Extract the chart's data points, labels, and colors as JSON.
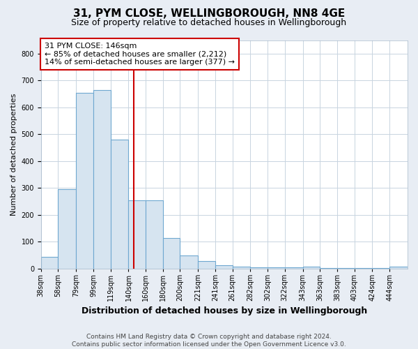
{
  "title": "31, PYM CLOSE, WELLINGBOROUGH, NN8 4GE",
  "subtitle": "Size of property relative to detached houses in Wellingborough",
  "xlabel": "Distribution of detached houses by size in Wellingborough",
  "ylabel": "Number of detached properties",
  "footer_line1": "Contains HM Land Registry data © Crown copyright and database right 2024.",
  "footer_line2": "Contains public sector information licensed under the Open Government Licence v3.0.",
  "annotation_line1": "31 PYM CLOSE: 146sqm",
  "annotation_line2": "← 85% of detached houses are smaller (2,212)",
  "annotation_line3": "14% of semi-detached houses are larger (377) →",
  "bar_color": "#d6e4f0",
  "bar_edge_color": "#6fa8d0",
  "red_line_x": 146,
  "bin_edges": [
    38,
    58,
    79,
    99,
    119,
    140,
    160,
    180,
    200,
    221,
    241,
    261,
    282,
    302,
    322,
    343,
    363,
    383,
    403,
    424,
    444,
    465
  ],
  "values": [
    45,
    295,
    655,
    665,
    480,
    255,
    255,
    113,
    48,
    28,
    13,
    8,
    5,
    5,
    5,
    8,
    3,
    3,
    3,
    3,
    8
  ],
  "ylim": [
    0,
    850
  ],
  "yticks": [
    0,
    100,
    200,
    300,
    400,
    500,
    600,
    700,
    800
  ],
  "figure_bg": "#e8edf4",
  "plot_bg": "#ffffff",
  "grid_color": "#c8d4e0",
  "title_fontsize": 11,
  "subtitle_fontsize": 9,
  "ylabel_fontsize": 8,
  "xlabel_fontsize": 9,
  "tick_fontsize": 7,
  "footer_fontsize": 6.5,
  "ann_fontsize": 8
}
